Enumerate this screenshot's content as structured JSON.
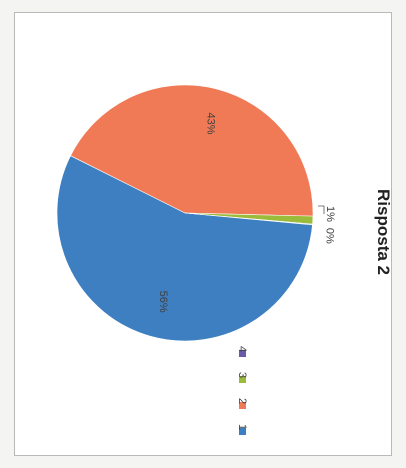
{
  "chart_data": {
    "type": "pie",
    "title": "Risposta 2",
    "categories": [
      "1",
      "2",
      "3",
      "4"
    ],
    "values": [
      56,
      43,
      1,
      0
    ],
    "labels": [
      "56%",
      "43%",
      "1%",
      "0%"
    ],
    "colors": [
      "#3e7fc1",
      "#f07a56",
      "#9bbb3a",
      "#6b5aa8"
    ],
    "legend_position": "bottom"
  }
}
